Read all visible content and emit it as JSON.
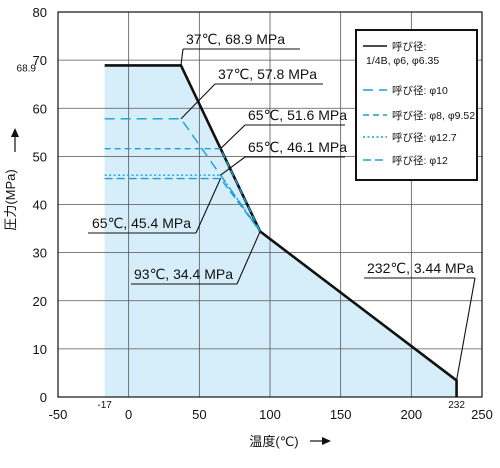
{
  "chart_data": {
    "type": "area",
    "xlabel": "温度(℃)",
    "ylabel": "圧力(MPa)",
    "xlim": [
      -50,
      250
    ],
    "ylim": [
      0,
      80
    ],
    "x_ticks": [
      "-50",
      "0",
      "50",
      "100",
      "150",
      "200",
      "250"
    ],
    "y_ticks": [
      "0",
      "10",
      "20",
      "30",
      "40",
      "50",
      "60",
      "70",
      "80"
    ],
    "extra_x_ticks": [
      {
        "value": -17,
        "label": "-17"
      },
      {
        "value": 232,
        "label": "232"
      }
    ],
    "extra_y_ticks": [
      {
        "value": 68.9,
        "label": "68.9"
      }
    ],
    "grid": true,
    "legend_position": "top-right",
    "colors": {
      "fill": "#d6eef9",
      "axis": "#111111",
      "grid": "#555555",
      "dashed": "#1a9fd8",
      "solid": "#111111"
    },
    "series": [
      {
        "name": "呼び径:",
        "name2": "1/4B, φ6, φ6.35",
        "style": "solid",
        "x": [
          -17,
          37,
          93,
          232,
          232
        ],
        "y": [
          68.9,
          68.9,
          34.4,
          3.44,
          0
        ]
      },
      {
        "name": "呼び径: φ10",
        "style": "dash",
        "x": [
          -17,
          37,
          93
        ],
        "y": [
          57.8,
          57.8,
          34.4
        ]
      },
      {
        "name": "呼び径: φ8, φ9.52",
        "style": "dash-short",
        "x": [
          -17,
          65,
          93
        ],
        "y": [
          51.6,
          51.6,
          34.4
        ]
      },
      {
        "name": "呼び径: φ12.7",
        "style": "dot",
        "x": [
          -17,
          65,
          93
        ],
        "y": [
          46.1,
          46.1,
          34.4
        ]
      },
      {
        "name": "呼び径: φ12",
        "style": "dash-mid",
        "x": [
          -17,
          65,
          93
        ],
        "y": [
          45.4,
          45.4,
          34.4
        ]
      }
    ],
    "annotations": [
      {
        "label": "37℃, 68.9 MPa",
        "x": 37,
        "y": 68.9
      },
      {
        "label": "37℃, 57.8 MPa",
        "x": 37,
        "y": 57.8
      },
      {
        "label": "65℃, 51.6 MPa",
        "x": 65,
        "y": 51.6
      },
      {
        "label": "65℃, 46.1 MPa",
        "x": 65,
        "y": 46.1
      },
      {
        "label": "65℃, 45.4 MPa",
        "x": 65,
        "y": 45.4
      },
      {
        "label": "93℃, 34.4 MPa",
        "x": 93,
        "y": 34.4
      },
      {
        "label": "232℃, 3.44 MPa",
        "x": 232,
        "y": 3.44
      }
    ]
  }
}
